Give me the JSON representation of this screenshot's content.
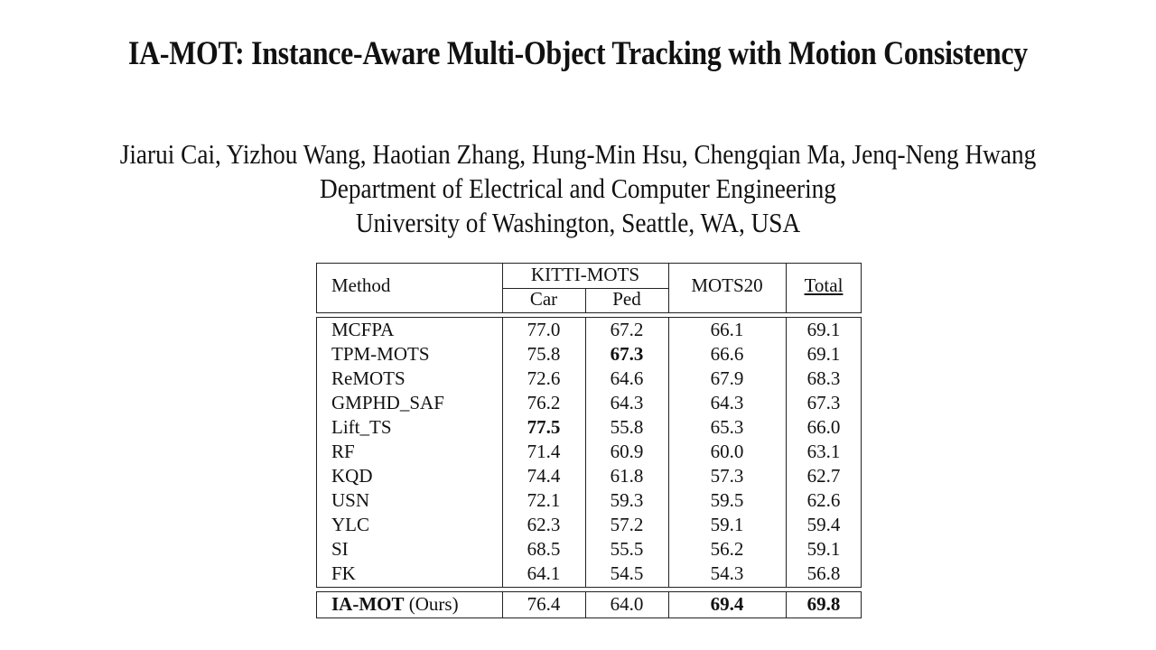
{
  "paper": {
    "title": "IA-MOT: Instance-Aware Multi-Object Tracking with Motion Consistency",
    "authors": "Jiarui Cai, Yizhou Wang, Haotian Zhang, Hung-Min Hsu, Chengqian Ma, Jenq-Neng Hwang",
    "department": "Department of Electrical and Computer Engineering",
    "university": "University of Washington, Seattle, WA, USA"
  },
  "table": {
    "headers": {
      "method": "Method",
      "kitti_mots": "KITTI-MOTS",
      "car": "Car",
      "ped": "Ped",
      "mots20": "MOTS20",
      "total": "Total"
    },
    "rows": [
      {
        "method": "MCFPA",
        "car": "77.0",
        "ped": "67.2",
        "mots20": "66.1",
        "total": "69.1"
      },
      {
        "method": "TPM-MOTS",
        "car": "75.8",
        "ped": "67.3",
        "mots20": "66.6",
        "total": "69.1"
      },
      {
        "method": "ReMOTS",
        "car": "72.6",
        "ped": "64.6",
        "mots20": "67.9",
        "total": "68.3"
      },
      {
        "method": "GMPHD_SAF",
        "car": "76.2",
        "ped": "64.3",
        "mots20": "64.3",
        "total": "67.3"
      },
      {
        "method": "Lift_TS",
        "car": "77.5",
        "ped": "55.8",
        "mots20": "65.3",
        "total": "66.0"
      },
      {
        "method": "RF",
        "car": "71.4",
        "ped": "60.9",
        "mots20": "60.0",
        "total": "63.1"
      },
      {
        "method": "KQD",
        "car": "74.4",
        "ped": "61.8",
        "mots20": "57.3",
        "total": "62.7"
      },
      {
        "method": "USN",
        "car": "72.1",
        "ped": "59.3",
        "mots20": "59.5",
        "total": "62.6"
      },
      {
        "method": "YLC",
        "car": "62.3",
        "ped": "57.2",
        "mots20": "59.1",
        "total": "59.4"
      },
      {
        "method": "SI",
        "car": "68.5",
        "ped": "55.5",
        "mots20": "56.2",
        "total": "59.1"
      },
      {
        "method": "FK",
        "car": "64.1",
        "ped": "54.5",
        "mots20": "54.3",
        "total": "56.8"
      }
    ],
    "ours": {
      "method_bold": "IA-MOT",
      "method_suffix": "(Ours)",
      "car": "76.4",
      "ped": "64.0",
      "mots20": "69.4",
      "total": "69.8"
    }
  }
}
